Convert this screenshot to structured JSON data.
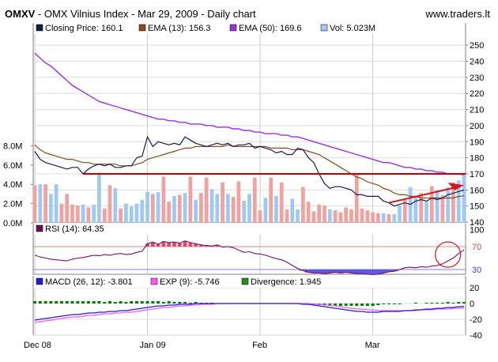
{
  "header": {
    "ticker": "OMXV",
    "subtitle": " - OMX Vilnius Index - Mar 29, 2009 - Daily chart",
    "site": "www.traders.lt"
  },
  "legends": {
    "price": [
      {
        "label": "Closing Price: 160.1",
        "color": "#1a1a4e"
      },
      {
        "label": "EMA (13): 156.3",
        "color": "#8b4a1f"
      },
      {
        "label": "EMA (50): 169.6",
        "color": "#9b30e0"
      },
      {
        "label": "Vol: 5.023M",
        "color": "#9ec9f5"
      }
    ],
    "rsi": [
      {
        "label": "RSI (14): 64.35",
        "color": "#6a0f4a"
      }
    ],
    "macd": [
      {
        "label": "MACD (26, 12): -3.801",
        "color": "#1f1fd0"
      },
      {
        "label": "EXP (9): -5.746",
        "color": "#ff55ff"
      },
      {
        "label": "Divergence: 1.945",
        "color": "#2a8a1a"
      }
    ]
  },
  "colors": {
    "close": "#1a1a4e",
    "ema13": "#8b4a1f",
    "ema50": "#9b30e0",
    "vol_up": "#9ec9f5",
    "vol_down": "#f2a29e",
    "support": "#c00000",
    "arrow": "#d01818",
    "rsi": "#7a1060",
    "rsi_fill_over": "#e04868",
    "rsi_fill_under": "#5a5ae8",
    "macd": "#1f1fd0",
    "exp": "#ff55ff",
    "divergence": "#008000"
  },
  "chart_data": [
    {
      "type": "line",
      "title": "OMXV - OMX Vilnius Index - Mar 29, 2009 - Daily chart",
      "x_tick_labels": [
        "Dec 08",
        "Jan 09",
        "Feb",
        "Mar"
      ],
      "x_tick_positions": [
        0,
        21,
        42,
        63
      ],
      "ylim": [
        140,
        255
      ],
      "y_ticks": [
        140,
        150,
        160,
        170,
        180,
        190,
        200,
        210,
        220,
        230,
        240,
        250
      ],
      "grid": true,
      "series": [
        {
          "name": "Closing Price",
          "values": [
            184,
            179,
            177,
            176,
            175,
            174,
            173,
            174,
            174,
            170,
            173,
            175,
            176,
            175,
            176,
            174,
            174,
            175,
            175,
            180,
            181,
            193,
            187,
            190,
            189,
            188,
            189,
            188,
            193,
            191,
            189,
            188,
            187,
            188,
            189,
            188,
            189,
            187,
            188,
            188,
            189,
            186,
            187,
            186,
            185,
            183,
            184,
            182,
            182,
            186,
            185,
            180,
            177,
            170,
            164,
            161,
            162,
            162,
            161,
            160,
            157,
            157,
            156,
            156,
            156,
            153,
            152,
            150,
            151,
            152,
            151,
            153,
            154,
            153,
            155,
            154,
            155,
            157,
            158,
            159,
            160
          ]
        },
        {
          "name": "EMA (13)",
          "values": [
            188,
            185,
            183,
            182,
            181,
            180,
            179,
            179,
            178,
            177,
            177,
            176,
            176,
            176,
            176,
            176,
            175,
            175,
            175,
            176,
            177,
            179,
            180,
            181,
            182,
            183,
            184,
            185,
            186,
            186,
            187,
            187,
            187,
            187,
            187,
            187,
            188,
            187,
            187,
            187,
            187,
            187,
            187,
            187,
            186,
            186,
            186,
            186,
            185,
            185,
            185,
            184,
            183,
            182,
            180,
            178,
            176,
            174,
            172,
            170,
            168,
            167,
            165,
            164,
            163,
            161,
            160,
            158,
            157,
            157,
            156,
            156,
            155,
            155,
            155,
            155,
            155,
            155,
            155,
            156,
            156.3
          ]
        },
        {
          "name": "EMA (50)",
          "values": [
            245,
            242,
            239,
            237,
            234,
            231,
            228,
            225,
            223,
            221,
            219,
            217,
            215,
            214,
            213,
            212,
            211,
            210,
            209,
            208,
            207,
            206,
            205,
            204,
            204,
            203,
            203,
            202,
            202,
            201,
            201,
            201,
            200,
            200,
            199,
            199,
            199,
            198,
            198,
            197,
            197,
            196,
            196,
            195,
            195,
            195,
            194,
            194,
            193,
            193,
            192,
            191,
            190,
            189,
            188,
            187,
            186,
            185,
            184,
            183,
            182,
            181,
            180,
            179,
            178,
            177,
            177,
            176,
            175,
            174,
            174,
            173,
            173,
            172,
            172,
            171,
            171,
            170,
            170,
            169.8,
            169.6
          ]
        },
        {
          "name": "Support",
          "values": [
            170,
            170
          ],
          "x": [
            9,
            80
          ]
        }
      ],
      "volume": {
        "name": "Vol",
        "ylim": [
          0,
          10
        ],
        "y_tick_labels": [
          "0.0M",
          "2.0M",
          "4.0M",
          "6.0M",
          "8.0M"
        ],
        "values": [
          3.9,
          4.0,
          4.0,
          3.0,
          4.0,
          2.0,
          3.0,
          1.9,
          1.8,
          1.9,
          1.6,
          1.9,
          5.2,
          1.5,
          3.9,
          3.6,
          1.5,
          2.0,
          1.7,
          2.0,
          2.4,
          3.2,
          3.0,
          3.2,
          4.8,
          2.2,
          2.8,
          2.9,
          3.1,
          4.8,
          2.4,
          3.1,
          4.7,
          3.5,
          3.0,
          4.2,
          3.0,
          2.7,
          4.3,
          2.3,
          3.0,
          4.7,
          1.3,
          2.6,
          4.7,
          2.8,
          4.2,
          1.4,
          2.5,
          1.4,
          3.7,
          2.2,
          1.2,
          1.9,
          1.8,
          1.4,
          1.3,
          1.1,
          1.6,
          1.4,
          5.1,
          1.5,
          1.3,
          1.1,
          1.0,
          1.0,
          0.9,
          0.9,
          1.8,
          2.4,
          3.7,
          2.7,
          3.1,
          2.2,
          3.8,
          3.4,
          2.9,
          3.7,
          4.2,
          4.4,
          5.0
        ],
        "up": [
          0,
          1,
          0,
          1,
          1,
          0,
          0,
          0,
          0,
          1,
          0,
          1,
          1,
          0,
          0,
          1,
          0,
          1,
          1,
          1,
          1,
          1,
          0,
          1,
          0,
          0,
          1,
          0,
          1,
          0,
          1,
          0,
          0,
          1,
          1,
          0,
          1,
          0,
          0,
          1,
          1,
          0,
          0,
          1,
          0,
          1,
          0,
          0,
          1,
          1,
          0,
          0,
          0,
          0,
          0,
          1,
          0,
          0,
          0,
          0,
          0,
          0,
          0,
          0,
          0,
          1,
          0,
          1,
          1,
          0,
          1,
          1,
          0,
          1,
          0,
          1,
          0,
          1,
          0,
          1,
          1
        ]
      }
    },
    {
      "type": "line",
      "title": "RSI (14)",
      "ylim": [
        0,
        100
      ],
      "y_ticks": [
        30,
        70
      ],
      "series": [
        {
          "name": "RSI (14)",
          "values": [
            55,
            52,
            50,
            48,
            47,
            46,
            45,
            48,
            50,
            51,
            53,
            55,
            54,
            56,
            55,
            57,
            58,
            56,
            57,
            60,
            62,
            75,
            78,
            74,
            79,
            77,
            78,
            76,
            80,
            77,
            75,
            73,
            72,
            71,
            73,
            69,
            70,
            68,
            64,
            60,
            61,
            58,
            57,
            55,
            52,
            49,
            47,
            43,
            37,
            32,
            28,
            25,
            24,
            24,
            23,
            24,
            25,
            24,
            25,
            24,
            23,
            23,
            22,
            21,
            22,
            24,
            26,
            27,
            30,
            33,
            34,
            33,
            35,
            34,
            36,
            37,
            40,
            45,
            50,
            58,
            64.35
          ]
        }
      ]
    },
    {
      "type": "line",
      "title": "MACD (26, 12)",
      "ylim": [
        -40,
        40
      ],
      "y_ticks": [
        -40,
        -20,
        0,
        20
      ],
      "series": [
        {
          "name": "MACD (26, 12)",
          "values": [
            -21,
            -20,
            -19,
            -18,
            -17,
            -16,
            -15,
            -14,
            -14,
            -13,
            -12,
            -12,
            -11,
            -11,
            -10,
            -10,
            -9,
            -9,
            -8,
            -7,
            -6,
            -5,
            -4,
            -3,
            -3,
            -2,
            -2,
            -1,
            -1,
            -1,
            0,
            0,
            0,
            0,
            0,
            0,
            0,
            0,
            0,
            0,
            0,
            0,
            0,
            0,
            0,
            0,
            0,
            0,
            0,
            0,
            -1,
            -1,
            -2,
            -3,
            -4,
            -5,
            -6,
            -7,
            -8,
            -9,
            -10,
            -10,
            -11,
            -11,
            -11,
            -10,
            -10,
            -10,
            -10,
            -9,
            -9,
            -8,
            -8,
            -7,
            -7,
            -6,
            -6,
            -5,
            -5,
            -4,
            -3.8
          ]
        },
        {
          "name": "EXP (9)",
          "values": [
            -24,
            -23,
            -22,
            -21,
            -20,
            -19,
            -18,
            -17,
            -17,
            -16,
            -15,
            -15,
            -14,
            -13,
            -13,
            -12,
            -12,
            -11,
            -11,
            -10,
            -9,
            -8,
            -7,
            -6,
            -5,
            -5,
            -4,
            -3,
            -3,
            -2,
            -2,
            -1,
            -1,
            -1,
            0,
            0,
            0,
            0,
            0,
            0,
            0,
            0,
            0,
            0,
            0,
            0,
            0,
            0,
            0,
            0,
            0,
            0,
            -1,
            -1,
            -2,
            -2,
            -3,
            -4,
            -5,
            -6,
            -7,
            -7,
            -8,
            -8,
            -9,
            -9,
            -9,
            -9,
            -9,
            -9,
            -9,
            -9,
            -8,
            -8,
            -8,
            -7,
            -7,
            -7,
            -6,
            -6,
            -5.7
          ]
        },
        {
          "name": "Divergence",
          "values": [
            3,
            3,
            3,
            3,
            3,
            3,
            3,
            3,
            3,
            3,
            3,
            3,
            3,
            2,
            3,
            2,
            3,
            2,
            3,
            3,
            3,
            3,
            3,
            3,
            2,
            3,
            2,
            2,
            2,
            1,
            2,
            1,
            1,
            1,
            0,
            0,
            0,
            0,
            0,
            0,
            0,
            0,
            0,
            0,
            0,
            0,
            0,
            0,
            0,
            0,
            -1,
            -1,
            -1,
            -2,
            -2,
            -3,
            -3,
            -3,
            -3,
            -3,
            -3,
            -3,
            -3,
            -3,
            -2,
            -1,
            -1,
            -1,
            -1,
            0,
            0,
            1,
            0,
            1,
            1,
            1,
            1,
            2,
            1,
            2,
            1.9
          ]
        }
      ]
    }
  ]
}
